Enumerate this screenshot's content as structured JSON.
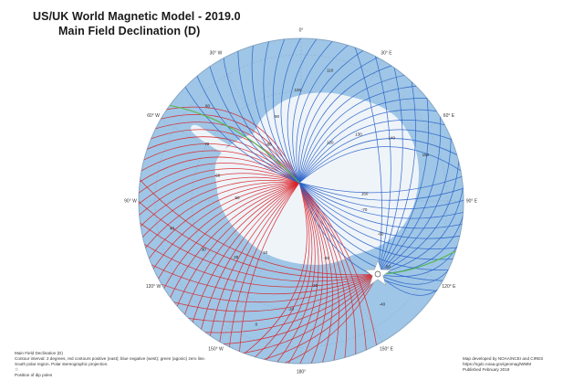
{
  "title": "US/UK World Magnetic Model - 2019.0",
  "subtitle": "Main Field Declination (D)",
  "legend": {
    "name": "Main Field Declination (D)",
    "contour_note": "Contour interval: 2 degrees, red contours positive (east); blue negative (west); green (agonic) zero line.",
    "region": "South polar region. Polar stereographic projection.",
    "dip_pole": "Position of dip poles"
  },
  "credits": {
    "developed_by": "Map developed by NOAA/NCEI and CIRES",
    "url": "https://ngdc.noaa.gov/geomag/WMM",
    "published": "Published February 2019"
  },
  "colors": {
    "ocean": "#9fc6e6",
    "ice": "#f3f6fa",
    "positive": "#d8232a",
    "negative": "#2a63c9",
    "agonic": "#52b848",
    "dip_pole": "#ffffff"
  },
  "longitude_labels": [
    "0°",
    "30° E",
    "60° E",
    "90° E",
    "120° E",
    "150° E",
    "180°",
    "150° W",
    "120° W",
    "90° W",
    "60° W",
    "30° W"
  ],
  "contour_labels": [
    "-70",
    "-60",
    "-50",
    "-40",
    "-30",
    "-20",
    "-10",
    "0",
    "10",
    "20",
    "30",
    "40",
    "50",
    "60",
    "70",
    "80",
    "-80",
    "90",
    "100",
    "110",
    "120",
    "130",
    "140",
    "150",
    "160"
  ],
  "icons": [
    "dip-pole-star-icon"
  ]
}
